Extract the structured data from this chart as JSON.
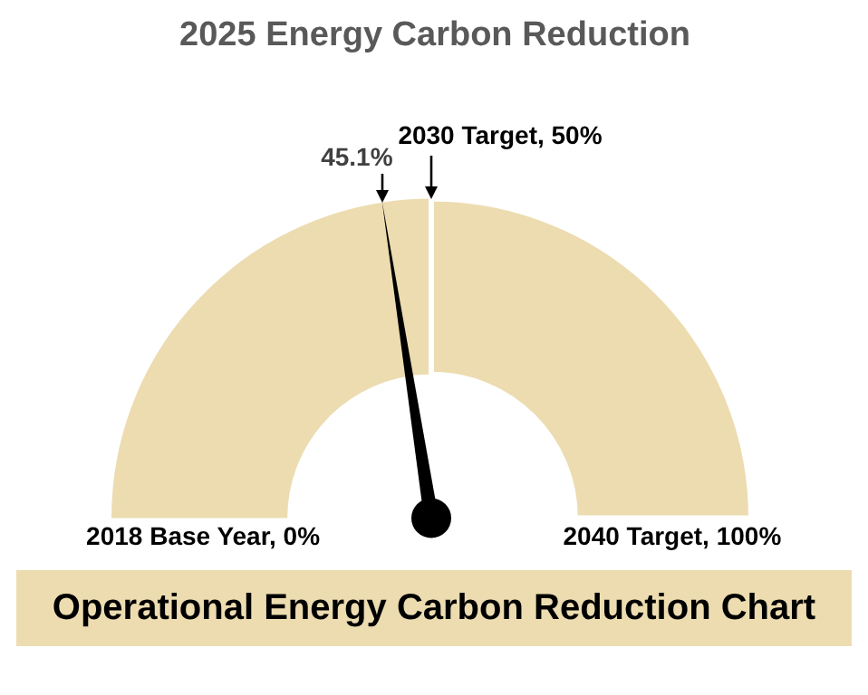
{
  "chart_data": {
    "type": "donut",
    "title": "2025 Energy Carbon Reduction",
    "categories": [
      "45.1%",
      null,
      null
    ],
    "values": [
      45.1,
      4.9,
      50
    ],
    "colors": [
      "#ecdcb0",
      "#ecdcb0",
      "#ecdcb0"
    ],
    "needle": "45.1%",
    "legend": false,
    "annotations": [
      "2018 Base Year, 0%",
      "2040 Target, 100%",
      "Operational Energy Carbon Reduction Chart",
      "2030 Target, 50%"
    ]
  }
}
